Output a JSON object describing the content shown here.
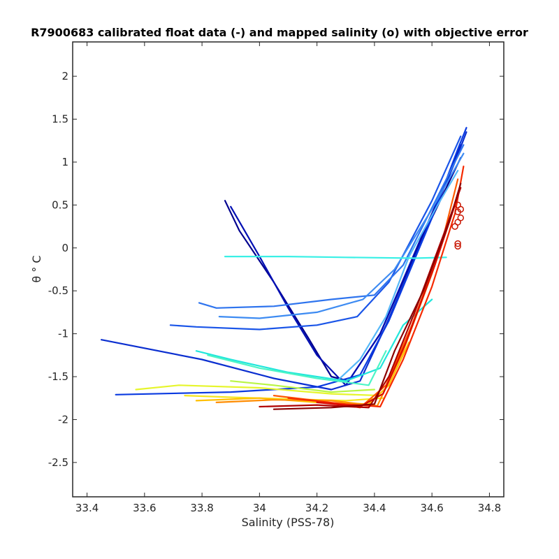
{
  "chart_data": {
    "type": "line",
    "title": "R7900683 calibrated float data (-) and mapped salinity (o) with objective error",
    "xlabel": "Salinity (PSS-78)",
    "ylabel": "θ ° C",
    "xlim": [
      33.35,
      34.85
    ],
    "ylim": [
      -2.9,
      2.4
    ],
    "xticks": [
      33.4,
      33.6,
      33.8,
      34,
      34.2,
      34.4,
      34.6,
      34.8
    ],
    "xtick_labels": [
      "33.4",
      "33.6",
      "33.8",
      "34",
      "34.2",
      "34.4",
      "34.6",
      "34.8"
    ],
    "yticks": [
      2,
      1.5,
      1,
      0.5,
      0,
      -0.5,
      -1,
      -1.5,
      -2,
      -2.5
    ],
    "ytick_labels": [
      "2",
      "1.5",
      "1",
      "0.5",
      "0",
      "-0.5",
      "-1",
      "-1.5",
      "-2",
      "-2.5"
    ],
    "grid": false,
    "legend": "none",
    "colormap": "jet (profile number)",
    "series": [
      {
        "color": "#00008f",
        "x": [
          33.88,
          33.93,
          34.05,
          34.17,
          34.25,
          34.31,
          34.42,
          34.55,
          34.65,
          34.7
        ],
        "y": [
          0.55,
          0.2,
          -0.4,
          -1.05,
          -1.5,
          -1.55,
          -1.0,
          0.0,
          0.7,
          1.05
        ]
      },
      {
        "color": "#000fb3",
        "x": [
          33.9,
          34.0,
          34.1,
          34.2,
          34.3,
          34.42,
          34.56,
          34.66,
          34.7
        ],
        "y": [
          0.48,
          -0.1,
          -0.7,
          -1.25,
          -1.6,
          -1.0,
          0.1,
          0.85,
          1.2
        ]
      },
      {
        "color": "#0b2fd0",
        "x": [
          33.45,
          33.8,
          34.05,
          34.25,
          34.35,
          34.44,
          34.58,
          34.68,
          34.72
        ],
        "y": [
          -1.07,
          -1.3,
          -1.52,
          -1.65,
          -1.55,
          -0.9,
          0.2,
          1.0,
          1.35
        ]
      },
      {
        "color": "#0a3ae0",
        "x": [
          33.5,
          33.9,
          34.2,
          34.35,
          34.45,
          34.6,
          34.69,
          34.72
        ],
        "y": [
          -1.71,
          -1.68,
          -1.62,
          -1.48,
          -0.85,
          0.35,
          1.15,
          1.4
        ]
      },
      {
        "color": "#1a55e8",
        "x": [
          33.69,
          33.78,
          34.0,
          34.2,
          34.34,
          34.45,
          34.6,
          34.7
        ],
        "y": [
          -0.9,
          -0.92,
          -0.95,
          -0.9,
          -0.8,
          -0.4,
          0.55,
          1.3
        ]
      },
      {
        "color": "#2e74ee",
        "x": [
          33.79,
          33.85,
          34.05,
          34.25,
          34.4,
          34.5,
          34.62,
          34.71
        ],
        "y": [
          -0.64,
          -0.7,
          -0.68,
          -0.6,
          -0.55,
          -0.2,
          0.6,
          1.2
        ]
      },
      {
        "color": "#3d8bf2",
        "x": [
          33.86,
          34.0,
          34.2,
          34.36,
          34.47,
          34.6,
          34.71
        ],
        "y": [
          -0.8,
          -0.82,
          -0.75,
          -0.6,
          -0.25,
          0.45,
          1.1
        ]
      },
      {
        "color": "#55b8f8",
        "x": [
          34.27,
          34.35,
          34.44,
          34.52,
          34.62,
          34.69
        ],
        "y": [
          -1.55,
          -1.3,
          -0.8,
          -0.1,
          0.5,
          0.9
        ]
      },
      {
        "color": "#3af0e6",
        "x": [
          33.88,
          34.1,
          34.3,
          34.54,
          34.65
        ],
        "y": [
          -0.1,
          -0.1,
          -0.11,
          -0.12,
          -0.11
        ]
      },
      {
        "color": "#22e6dc",
        "x": [
          33.78,
          33.9,
          34.1,
          34.3,
          34.42,
          34.5,
          34.6
        ],
        "y": [
          -1.2,
          -1.3,
          -1.45,
          -1.55,
          -1.4,
          -0.9,
          -0.6
        ]
      },
      {
        "color": "#4cf5c6",
        "x": [
          33.82,
          34.0,
          34.2,
          34.38,
          34.44
        ],
        "y": [
          -1.25,
          -1.4,
          -1.52,
          -1.6,
          -1.2
        ]
      },
      {
        "color": "#b9f545",
        "x": [
          33.9,
          34.05,
          34.25,
          34.4
        ],
        "y": [
          -1.55,
          -1.6,
          -1.68,
          -1.65
        ]
      },
      {
        "color": "#e6f52c",
        "x": [
          33.57,
          33.72,
          34.0,
          34.25,
          34.42
        ],
        "y": [
          -1.65,
          -1.6,
          -1.63,
          -1.7,
          -1.72
        ]
      },
      {
        "color": "#f5e61e",
        "x": [
          33.74,
          33.9,
          34.1,
          34.3,
          34.43
        ],
        "y": [
          -1.72,
          -1.74,
          -1.76,
          -1.78,
          -1.75
        ]
      },
      {
        "color": "#ffbf00",
        "x": [
          33.78,
          34.0,
          34.2,
          34.38,
          34.45,
          34.52
        ],
        "y": [
          -1.78,
          -1.75,
          -1.8,
          -1.82,
          -1.6,
          -1.1
        ]
      },
      {
        "color": "#ff8c00",
        "x": [
          33.85,
          34.05,
          34.25,
          34.41,
          34.5,
          34.6,
          34.67
        ],
        "y": [
          -1.8,
          -1.77,
          -1.78,
          -1.84,
          -1.2,
          -0.3,
          0.4
        ]
      },
      {
        "color": "#ff5a00",
        "x": [
          34.05,
          34.2,
          34.35,
          34.44,
          34.53,
          34.63,
          34.69
        ],
        "y": [
          -1.72,
          -1.78,
          -1.86,
          -1.6,
          -0.9,
          0.0,
          0.8
        ]
      },
      {
        "color": "#f52a00",
        "x": [
          34.1,
          34.3,
          34.42,
          34.5,
          34.6,
          34.68,
          34.71
        ],
        "y": [
          -1.75,
          -1.82,
          -1.85,
          -1.3,
          -0.45,
          0.4,
          0.95
        ]
      },
      {
        "color": "#d90a00",
        "x": [
          34.2,
          34.35,
          34.43,
          34.51,
          34.61,
          34.69
        ],
        "y": [
          -1.8,
          -1.85,
          -1.7,
          -1.1,
          -0.2,
          0.6
        ]
      },
      {
        "color": "#b00000",
        "x": [
          34.0,
          34.2,
          34.38,
          34.45,
          34.54,
          34.64,
          34.7
        ],
        "y": [
          -1.85,
          -1.83,
          -1.86,
          -1.5,
          -0.75,
          0.15,
          0.7
        ]
      },
      {
        "color": "#8b0000",
        "x": [
          34.05,
          34.25,
          34.4,
          34.47,
          34.57,
          34.66,
          34.7
        ],
        "y": [
          -1.88,
          -1.86,
          -1.82,
          -1.2,
          -0.5,
          0.3,
          0.75
        ]
      }
    ],
    "mapped_salinity_points": {
      "color": "#c81400",
      "x": [
        34.69,
        34.69,
        34.7,
        34.69,
        34.68,
        34.7,
        34.69,
        34.69
      ],
      "y": [
        0.5,
        0.42,
        0.35,
        0.3,
        0.25,
        0.45,
        0.02,
        0.05
      ]
    }
  }
}
